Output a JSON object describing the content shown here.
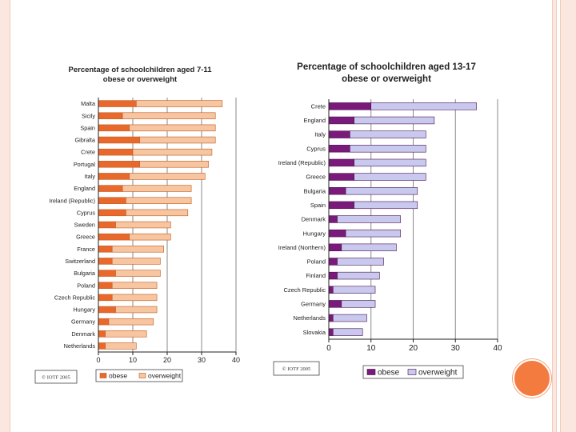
{
  "colors": {
    "chart1_obese": "#e8692b",
    "chart1_overweight": "#f7c59f",
    "chart2_obese": "#7a1a7a",
    "chart2_overweight": "#c9c9ef"
  },
  "chart_data": [
    {
      "type": "bar",
      "orientation": "horizontal",
      "stacked": true,
      "title": "Percentage of schoolchildren aged 7-11 obese or overweight",
      "title_lines": [
        "Percentage of schoolchildren aged 7-11",
        "obese or overweight"
      ],
      "categories": [
        "Malta",
        "Sicily",
        "Spain",
        "Gibralta",
        "Crete",
        "Portugal",
        "Italy",
        "England",
        "Ireland (Republic)",
        "Cyprus",
        "Sweden",
        "Greece",
        "France",
        "Switzerland",
        "Bulgaria",
        "Poland",
        "Czech Republic",
        "Hungary",
        "Germany",
        "Denmark",
        "Netherlands"
      ],
      "series": [
        {
          "name": "obese",
          "values": [
            11,
            7,
            9,
            12,
            10,
            12,
            9,
            7,
            8,
            8,
            5,
            9,
            4,
            4,
            5,
            4,
            4,
            5,
            3,
            2,
            2
          ]
        },
        {
          "name": "overweight",
          "values": [
            25,
            27,
            25,
            22,
            23,
            20,
            22,
            20,
            19,
            18,
            16,
            12,
            15,
            14,
            13,
            13,
            13,
            12,
            13,
            12,
            9
          ]
        }
      ],
      "xlim": [
        0,
        40
      ],
      "xticks": [
        "0",
        "10",
        "20",
        "30",
        "40"
      ],
      "grid": true,
      "legend": "bottom",
      "copyright": "© IOTF 2005"
    },
    {
      "type": "bar",
      "orientation": "horizontal",
      "stacked": true,
      "title": "Percentage of schoolchildren aged 13-17 obese or overweight",
      "title_lines": [
        "Percentage of schoolchildren aged 13-17",
        "obese or overweight"
      ],
      "categories": [
        "Crete",
        "England",
        "Italy",
        "Cyprus",
        "Ireland (Republic)",
        "Greece",
        "Bulgaria",
        "Spain",
        "Denmark",
        "Hungary",
        "Ireland (Northern)",
        "Poland",
        "Finland",
        "Czech Republic",
        "Germany",
        "Netherlands",
        "Slovakia"
      ],
      "series": [
        {
          "name": "obese",
          "values": [
            10,
            6,
            5,
            5,
            6,
            6,
            4,
            6,
            2,
            4,
            3,
            2,
            2,
            1,
            3,
            1,
            1
          ]
        },
        {
          "name": "overweight",
          "values": [
            25,
            19,
            18,
            18,
            17,
            17,
            17,
            15,
            15,
            13,
            13,
            11,
            10,
            10,
            8,
            8,
            7
          ]
        }
      ],
      "xlim": [
        0,
        40
      ],
      "xticks": [
        "0",
        "10",
        "20",
        "30",
        "40"
      ],
      "grid": true,
      "legend": "bottom",
      "copyright": "© IOTF 2005"
    }
  ]
}
